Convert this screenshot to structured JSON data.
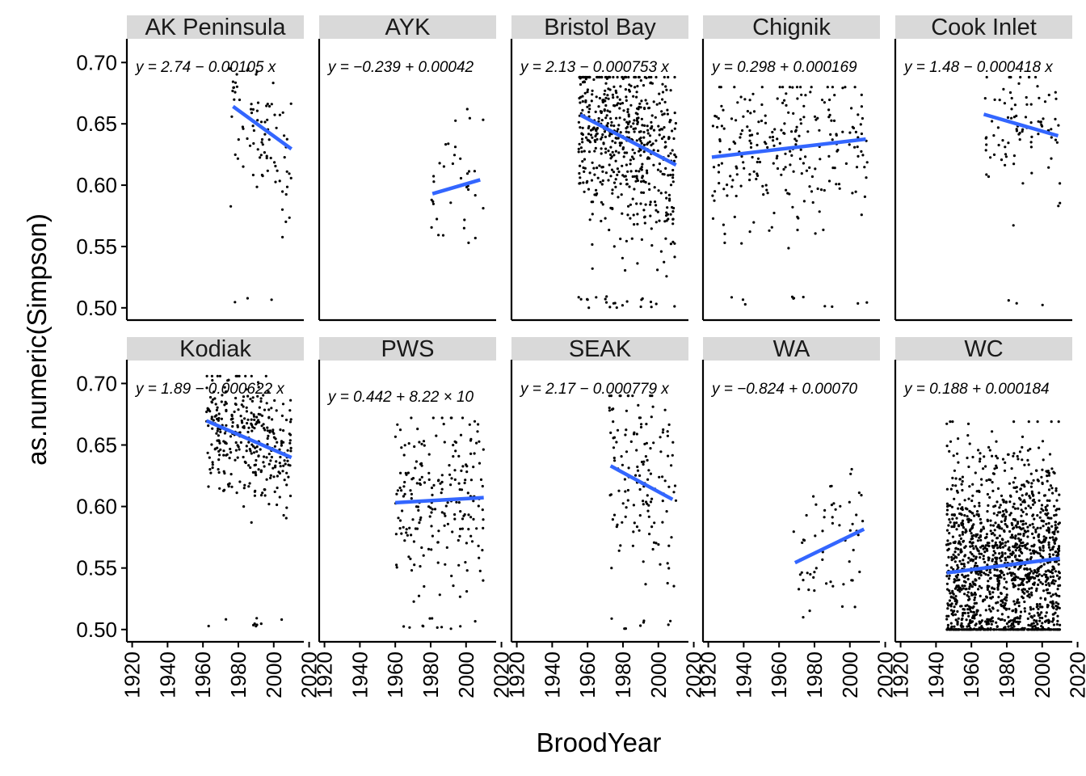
{
  "chart_data": {
    "type": "scatter",
    "xlabel": "BroodYear",
    "ylabel": "as.numeric(Simpson)",
    "xlim": [
      1917,
      2017
    ],
    "ylim": [
      0.49,
      0.718
    ],
    "xticks": [
      "1920",
      "1940",
      "1960",
      "1980",
      "2000",
      "2020"
    ],
    "yticks": [
      "0.50",
      "0.55",
      "0.60",
      "0.65",
      "0.70"
    ],
    "grid": false,
    "colors": {
      "points": "#000000",
      "fit_line": "#3366FF",
      "strip_bg": "#D9D9D9"
    },
    "panels": [
      {
        "name": "AK Peninsula",
        "equation": "y = 2.74 − 0.00105 x",
        "x_range": [
          1975,
          2010
        ],
        "n_points": 90,
        "fit": {
          "intercept": 2.74,
          "slope": -0.00105,
          "x": [
            1977,
            2010
          ]
        },
        "y_center": 0.655,
        "y_spread": 0.03,
        "y_min": 0.5,
        "y_max": 0.695
      },
      {
        "name": "AYK",
        "equation": "y = −0.239 + 0.00042",
        "x_range": [
          1980,
          2010
        ],
        "n_points": 35,
        "fit": {
          "intercept": -0.239,
          "slope": 0.00042,
          "x": [
            1981,
            2008
          ]
        },
        "y_center": 0.605,
        "y_spread": 0.03,
        "y_min": 0.553,
        "y_max": 0.662
      },
      {
        "name": "Bristol Bay",
        "equation": "y = 2.13 − 0.000753 x",
        "x_range": [
          1955,
          2010
        ],
        "n_points": 600,
        "fit": {
          "intercept": 2.13,
          "slope": -0.000753,
          "x": [
            1956,
            2010
          ]
        },
        "y_center": 0.635,
        "y_spread": 0.04,
        "y_min": 0.5,
        "y_max": 0.688
      },
      {
        "name": "Chignik",
        "equation": "y = 0.298 + 0.000169",
        "x_range": [
          1922,
          2010
        ],
        "n_points": 260,
        "fit": {
          "intercept": 0.298,
          "slope": 0.000169,
          "x": [
            1922,
            2009
          ]
        },
        "y_center": 0.63,
        "y_spread": 0.035,
        "y_min": 0.5,
        "y_max": 0.68
      },
      {
        "name": "Cook Inlet",
        "equation": "y = 1.48 − 0.000418 x",
        "x_range": [
          1967,
          2010
        ],
        "n_points": 95,
        "fit": {
          "intercept": 1.48,
          "slope": -0.000418,
          "x": [
            1967,
            2009
          ]
        },
        "y_center": 0.65,
        "y_spread": 0.03,
        "y_min": 0.5,
        "y_max": 0.688
      },
      {
        "name": "Kodiak",
        "equation": "y = 1.89 − 0.000622 x",
        "x_range": [
          1962,
          2010
        ],
        "n_points": 350,
        "fit": {
          "intercept": 1.89,
          "slope": -0.000622,
          "x": [
            1962,
            2010
          ]
        },
        "y_center": 0.665,
        "y_spread": 0.025,
        "y_min": 0.5,
        "y_max": 0.706
      },
      {
        "name": "PWS",
        "equation": "y = 0.442 + 8.22 × 10",
        "x_range": [
          1960,
          2010
        ],
        "n_points": 220,
        "fit": {
          "intercept": 0.442,
          "slope": 8.22e-05,
          "x": [
            1960,
            2010
          ]
        },
        "y_center": 0.605,
        "y_spread": 0.035,
        "y_min": 0.5,
        "y_max": 0.672
      },
      {
        "name": "SEAK",
        "equation": "y = 2.17 − 0.000779 x",
        "x_range": [
          1972,
          2010
        ],
        "n_points": 150,
        "fit": {
          "intercept": 2.17,
          "slope": -0.000779,
          "x": [
            1973,
            2008
          ]
        },
        "y_center": 0.62,
        "y_spread": 0.04,
        "y_min": 0.5,
        "y_max": 0.69
      },
      {
        "name": "WA",
        "equation": "y = −0.824 + 0.00070",
        "x_range": [
          1968,
          2008
        ],
        "n_points": 60,
        "fit": {
          "intercept": -0.824,
          "slope": 0.0007,
          "x": [
            1969,
            2008
          ]
        },
        "y_center": 0.57,
        "y_spread": 0.03,
        "y_min": 0.51,
        "y_max": 0.65
      },
      {
        "name": "WC",
        "equation": "y = 0.188 + 0.000184",
        "x_range": [
          1946,
          2010
        ],
        "n_points": 1500,
        "fit": {
          "intercept": 0.188,
          "slope": 0.000184,
          "x": [
            1946,
            2010
          ]
        },
        "y_center": 0.55,
        "y_spread": 0.045,
        "y_min": 0.5,
        "y_max": 0.669
      }
    ]
  }
}
